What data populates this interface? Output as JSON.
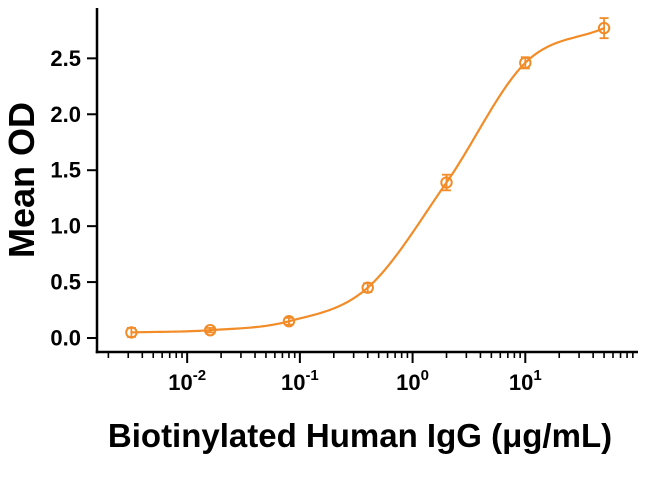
{
  "chart_data": {
    "type": "scatter",
    "subtype": "dose-response-curve",
    "title": "",
    "xlabel": "Biotinylated Human IgG (μg/mL)",
    "ylabel": "Mean OD",
    "x_scale": "log",
    "grid": false,
    "legend": null,
    "x": [
      0.0032,
      0.016,
      0.08,
      0.4,
      2,
      10,
      50
    ],
    "y": [
      0.05,
      0.07,
      0.15,
      0.45,
      1.39,
      2.46,
      2.77
    ],
    "y_err": [
      0.04,
      0.02,
      0.03,
      0.04,
      0.07,
      0.05,
      0.09
    ],
    "x_ticks": [
      {
        "label_base": "10",
        "exponent": "-2",
        "value": 0.01
      },
      {
        "label_base": "10",
        "exponent": "-1",
        "value": 0.1
      },
      {
        "label_base": "10",
        "exponent": "0",
        "value": 1
      },
      {
        "label_base": "10",
        "exponent": "1",
        "value": 10
      }
    ],
    "y_ticks": [
      "0.0",
      "0.5",
      "1.0",
      "1.5",
      "2.0",
      "2.5"
    ],
    "y_tick_values": [
      0,
      0.5,
      1,
      1.5,
      2,
      2.5
    ],
    "x_log_range": [
      -2.8,
      2.0
    ],
    "ylim": [
      -0.125,
      2.95
    ],
    "curve_color": "#F28C28",
    "axis_color": "#000000",
    "marker": "open-circle"
  }
}
